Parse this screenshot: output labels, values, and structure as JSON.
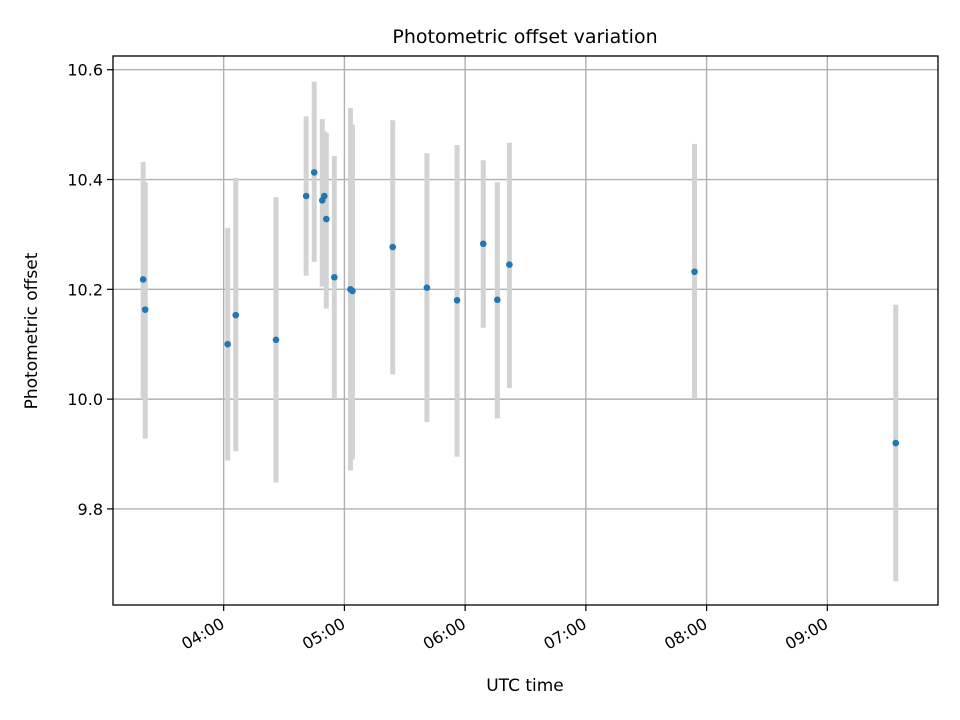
{
  "chart_data": {
    "type": "scatter",
    "title": "Photometric offset variation",
    "xlabel": "UTC time",
    "ylabel": "Photometric offset",
    "xlim": [
      "03:05",
      "09:55"
    ],
    "ylim": [
      9.625,
      10.625
    ],
    "x_ticks": [
      "04:00",
      "05:00",
      "06:00",
      "07:00",
      "08:00",
      "09:00"
    ],
    "y_ticks": [
      9.8,
      10.0,
      10.2,
      10.4,
      10.6
    ],
    "grid": true,
    "colors": {
      "point": "#1f77b4",
      "errorbar": "#d3d3d3"
    },
    "points": [
      {
        "time": "03:20",
        "y": 10.218,
        "err_low": 10.0,
        "err_high": 10.432
      },
      {
        "time": "03:21",
        "y": 10.163,
        "err_low": 9.928,
        "err_high": 10.395
      },
      {
        "time": "04:02",
        "y": 10.1,
        "err_low": 9.888,
        "err_high": 10.312
      },
      {
        "time": "04:06",
        "y": 10.153,
        "err_low": 9.905,
        "err_high": 10.403
      },
      {
        "time": "04:26",
        "y": 10.108,
        "err_low": 9.848,
        "err_high": 10.368
      },
      {
        "time": "04:41",
        "y": 10.37,
        "err_low": 10.225,
        "err_high": 10.515
      },
      {
        "time": "04:45",
        "y": 10.413,
        "err_low": 10.25,
        "err_high": 10.578
      },
      {
        "time": "04:49",
        "y": 10.362,
        "err_low": 10.205,
        "err_high": 10.51
      },
      {
        "time": "04:50",
        "y": 10.37,
        "err_low": 10.23,
        "err_high": 10.488
      },
      {
        "time": "04:51",
        "y": 10.328,
        "err_low": 10.165,
        "err_high": 10.485
      },
      {
        "time": "04:55",
        "y": 10.222,
        "err_low": 10.0,
        "err_high": 10.443
      },
      {
        "time": "05:03",
        "y": 10.2,
        "err_low": 9.87,
        "err_high": 10.53
      },
      {
        "time": "05:04",
        "y": 10.197,
        "err_low": 9.89,
        "err_high": 10.5
      },
      {
        "time": "05:24",
        "y": 10.277,
        "err_low": 10.045,
        "err_high": 10.508
      },
      {
        "time": "05:41",
        "y": 10.203,
        "err_low": 9.958,
        "err_high": 10.448
      },
      {
        "time": "05:56",
        "y": 10.18,
        "err_low": 9.895,
        "err_high": 10.463
      },
      {
        "time": "06:09",
        "y": 10.283,
        "err_low": 10.13,
        "err_high": 10.435
      },
      {
        "time": "06:16",
        "y": 10.181,
        "err_low": 9.965,
        "err_high": 10.395
      },
      {
        "time": "06:22",
        "y": 10.245,
        "err_low": 10.02,
        "err_high": 10.467
      },
      {
        "time": "07:54",
        "y": 10.232,
        "err_low": 10.0,
        "err_high": 10.465
      },
      {
        "time": "09:34",
        "y": 9.92,
        "err_low": 9.668,
        "err_high": 10.172
      }
    ]
  }
}
